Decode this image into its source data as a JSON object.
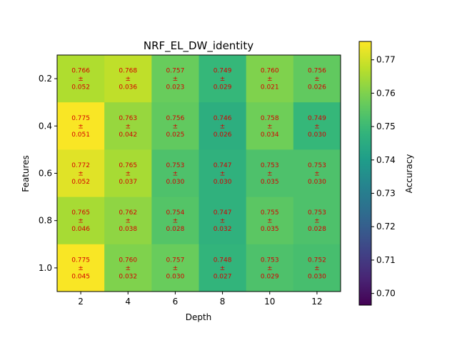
{
  "chart_data": {
    "type": "heatmap",
    "title": "NRF_EL_DW_identity",
    "xlabel": "Depth",
    "ylabel": "Features",
    "colorbar_label": "Accuracy",
    "colormap": "viridis",
    "x": [
      "2",
      "4",
      "6",
      "8",
      "10",
      "12"
    ],
    "y": [
      "0.2",
      "0.4",
      "0.6",
      "0.8",
      "1.0"
    ],
    "values": [
      [
        0.766,
        0.768,
        0.757,
        0.749,
        0.76,
        0.756
      ],
      [
        0.775,
        0.763,
        0.756,
        0.746,
        0.758,
        0.749
      ],
      [
        0.772,
        0.765,
        0.753,
        0.747,
        0.753,
        0.753
      ],
      [
        0.765,
        0.762,
        0.754,
        0.747,
        0.755,
        0.753
      ],
      [
        0.775,
        0.76,
        0.757,
        0.748,
        0.753,
        0.752
      ]
    ],
    "std": [
      [
        0.052,
        0.036,
        0.023,
        0.029,
        0.021,
        0.026
      ],
      [
        0.051,
        0.042,
        0.025,
        0.026,
        0.034,
        0.03
      ],
      [
        0.052,
        0.037,
        0.03,
        0.03,
        0.035,
        0.03
      ],
      [
        0.046,
        0.038,
        0.028,
        0.032,
        0.035,
        0.028
      ],
      [
        0.045,
        0.032,
        0.03,
        0.027,
        0.029,
        0.03
      ]
    ],
    "color_range": [
      0.6965,
      0.7755
    ],
    "colorbar_ticks": [
      "0.70",
      "0.71",
      "0.72",
      "0.73",
      "0.74",
      "0.75",
      "0.76",
      "0.77"
    ],
    "pm_symbol": "±"
  }
}
